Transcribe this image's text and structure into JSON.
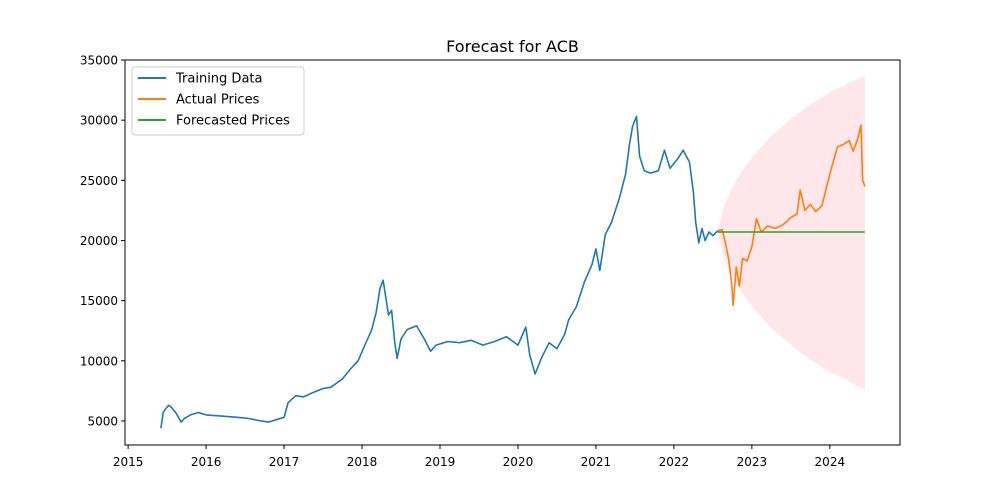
{
  "chart_data": {
    "type": "line",
    "title": "Forecast for ACB",
    "xlabel": "",
    "ylabel": "",
    "xlim": [
      2014.96,
      2024.9
    ],
    "ylim": [
      3000,
      35000
    ],
    "grid": false,
    "legend_position": "top-left",
    "x_ticks": [
      2015,
      2016,
      2017,
      2018,
      2019,
      2020,
      2021,
      2022,
      2023,
      2024
    ],
    "x_tick_labels": [
      "2015",
      "2016",
      "2017",
      "2018",
      "2019",
      "2020",
      "2021",
      "2022",
      "2023",
      "2024"
    ],
    "y_ticks": [
      5000,
      10000,
      15000,
      20000,
      25000,
      30000,
      35000
    ],
    "y_tick_labels": [
      "5000",
      "10000",
      "15000",
      "20000",
      "25000",
      "30000",
      "35000"
    ],
    "series": [
      {
        "name": "Training Data",
        "color": "#1f77b4",
        "points": [
          [
            2015.42,
            4400
          ],
          [
            2015.45,
            5700
          ],
          [
            2015.48,
            6000
          ],
          [
            2015.52,
            6300
          ],
          [
            2015.56,
            6100
          ],
          [
            2015.62,
            5600
          ],
          [
            2015.68,
            4900
          ],
          [
            2015.72,
            5200
          ],
          [
            2015.8,
            5500
          ],
          [
            2015.9,
            5700
          ],
          [
            2016.0,
            5500
          ],
          [
            2016.2,
            5400
          ],
          [
            2016.4,
            5300
          ],
          [
            2016.55,
            5200
          ],
          [
            2016.7,
            5000
          ],
          [
            2016.8,
            4900
          ],
          [
            2016.9,
            5100
          ],
          [
            2017.0,
            5300
          ],
          [
            2017.05,
            6500
          ],
          [
            2017.15,
            7100
          ],
          [
            2017.25,
            7000
          ],
          [
            2017.35,
            7300
          ],
          [
            2017.5,
            7700
          ],
          [
            2017.6,
            7800
          ],
          [
            2017.75,
            8500
          ],
          [
            2017.85,
            9300
          ],
          [
            2017.95,
            10000
          ],
          [
            2018.05,
            11500
          ],
          [
            2018.12,
            12500
          ],
          [
            2018.18,
            14000
          ],
          [
            2018.23,
            16000
          ],
          [
            2018.27,
            16700
          ],
          [
            2018.3,
            15500
          ],
          [
            2018.34,
            13800
          ],
          [
            2018.38,
            14200
          ],
          [
            2018.42,
            11500
          ],
          [
            2018.45,
            10200
          ],
          [
            2018.5,
            11800
          ],
          [
            2018.58,
            12600
          ],
          [
            2018.7,
            12900
          ],
          [
            2018.8,
            11800
          ],
          [
            2018.88,
            10800
          ],
          [
            2018.95,
            11300
          ],
          [
            2019.1,
            11600
          ],
          [
            2019.25,
            11500
          ],
          [
            2019.4,
            11700
          ],
          [
            2019.55,
            11300
          ],
          [
            2019.7,
            11600
          ],
          [
            2019.85,
            12000
          ],
          [
            2020.0,
            11300
          ],
          [
            2020.1,
            12800
          ],
          [
            2020.15,
            10500
          ],
          [
            2020.22,
            8900
          ],
          [
            2020.3,
            10200
          ],
          [
            2020.4,
            11500
          ],
          [
            2020.5,
            11000
          ],
          [
            2020.6,
            12200
          ],
          [
            2020.65,
            13400
          ],
          [
            2020.75,
            14500
          ],
          [
            2020.85,
            16500
          ],
          [
            2020.95,
            18000
          ],
          [
            2021.0,
            19300
          ],
          [
            2021.05,
            17500
          ],
          [
            2021.12,
            20500
          ],
          [
            2021.2,
            21500
          ],
          [
            2021.3,
            23500
          ],
          [
            2021.38,
            25500
          ],
          [
            2021.43,
            28000
          ],
          [
            2021.47,
            29500
          ],
          [
            2021.52,
            30300
          ],
          [
            2021.56,
            27000
          ],
          [
            2021.62,
            25800
          ],
          [
            2021.7,
            25600
          ],
          [
            2021.8,
            25800
          ],
          [
            2021.88,
            27500
          ],
          [
            2021.95,
            26000
          ],
          [
            2022.05,
            26800
          ],
          [
            2022.12,
            27500
          ],
          [
            2022.2,
            26500
          ],
          [
            2022.25,
            24000
          ],
          [
            2022.28,
            21500
          ],
          [
            2022.32,
            19800
          ],
          [
            2022.36,
            21000
          ],
          [
            2022.4,
            20000
          ],
          [
            2022.45,
            20700
          ],
          [
            2022.5,
            20400
          ],
          [
            2022.56,
            20800
          ]
        ]
      },
      {
        "name": "Actual Prices",
        "color": "#ff7f0e",
        "points": [
          [
            2022.56,
            20800
          ],
          [
            2022.62,
            20900
          ],
          [
            2022.66,
            19800
          ],
          [
            2022.7,
            18500
          ],
          [
            2022.74,
            16500
          ],
          [
            2022.76,
            14600
          ],
          [
            2022.8,
            17800
          ],
          [
            2022.84,
            16200
          ],
          [
            2022.88,
            18500
          ],
          [
            2022.94,
            18300
          ],
          [
            2023.0,
            19500
          ],
          [
            2023.06,
            21800
          ],
          [
            2023.12,
            20700
          ],
          [
            2023.2,
            21200
          ],
          [
            2023.3,
            21000
          ],
          [
            2023.4,
            21300
          ],
          [
            2023.5,
            21900
          ],
          [
            2023.58,
            22200
          ],
          [
            2023.62,
            24200
          ],
          [
            2023.68,
            22500
          ],
          [
            2023.75,
            23000
          ],
          [
            2023.82,
            22400
          ],
          [
            2023.9,
            22900
          ],
          [
            2023.96,
            24500
          ],
          [
            2024.02,
            26000
          ],
          [
            2024.1,
            27800
          ],
          [
            2024.18,
            28000
          ],
          [
            2024.25,
            28300
          ],
          [
            2024.3,
            27400
          ],
          [
            2024.36,
            28500
          ],
          [
            2024.4,
            29600
          ],
          [
            2024.42,
            25000
          ],
          [
            2024.45,
            24500
          ]
        ]
      },
      {
        "name": "Forecasted Prices",
        "color": "#2ca02c",
        "points": [
          [
            2022.56,
            20700
          ],
          [
            2024.45,
            20700
          ]
        ]
      }
    ],
    "confidence_band": {
      "color": "#ffc0cb",
      "opacity": 0.4,
      "x": [
        2022.56,
        2022.65,
        2022.8,
        2023.0,
        2023.25,
        2023.5,
        2023.75,
        2024.0,
        2024.25,
        2024.45
      ],
      "upper": [
        20900,
        23000,
        25000,
        26900,
        28700,
        30100,
        31300,
        32300,
        33100,
        33700
      ],
      "lower": [
        20500,
        18400,
        16400,
        14500,
        12700,
        11300,
        10100,
        9100,
        8300,
        7600
      ]
    }
  }
}
